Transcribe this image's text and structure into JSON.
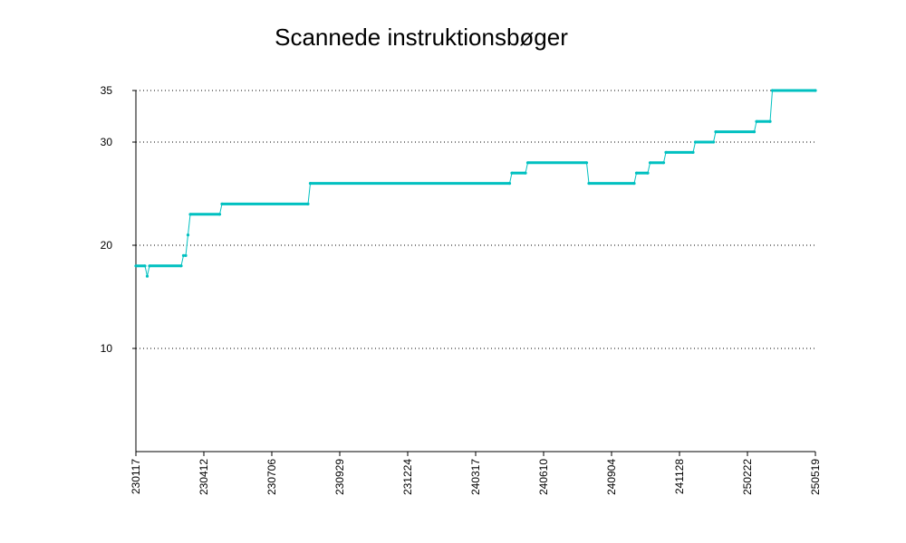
{
  "chart_data": {
    "type": "line",
    "title": "Scannede instruktionsbøger",
    "xlabel": "",
    "ylabel": "",
    "ylim": [
      0,
      35
    ],
    "y_ticks": [
      "10",
      "20",
      "30",
      "35"
    ],
    "x_ticks": [
      "230117",
      "230412",
      "230706",
      "230929",
      "231224",
      "240317",
      "240610",
      "240904",
      "241128",
      "250222",
      "250519"
    ],
    "grid": true,
    "color": "#00c0c0",
    "series": [
      {
        "points": [
          [
            0,
            18
          ],
          [
            4,
            18
          ],
          [
            5,
            17
          ],
          [
            6,
            18
          ],
          [
            20,
            18
          ],
          [
            21,
            19
          ],
          [
            22,
            19
          ],
          [
            23,
            21
          ],
          [
            24,
            23
          ],
          [
            37,
            23
          ],
          [
            38,
            24
          ],
          [
            76,
            24
          ],
          [
            77,
            26
          ],
          [
            165,
            26
          ],
          [
            166,
            27
          ],
          [
            172,
            27
          ],
          [
            173,
            28
          ],
          [
            199,
            28
          ],
          [
            200,
            26
          ],
          [
            220,
            26
          ],
          [
            221,
            27
          ],
          [
            226,
            27
          ],
          [
            227,
            28
          ],
          [
            233,
            28
          ],
          [
            234,
            29
          ],
          [
            246,
            29
          ],
          [
            247,
            30
          ],
          [
            255,
            30
          ],
          [
            256,
            31
          ],
          [
            273,
            31
          ],
          [
            274,
            32
          ],
          [
            280,
            32
          ],
          [
            281,
            35
          ],
          [
            300,
            35
          ]
        ]
      }
    ]
  }
}
